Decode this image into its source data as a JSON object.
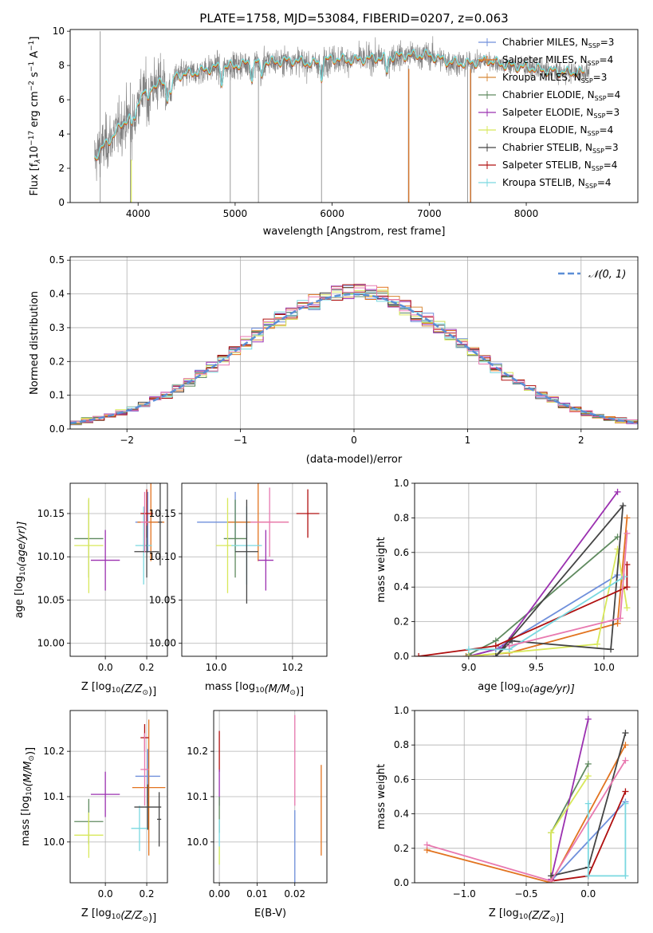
{
  "figure_title": "PLATE=1758, MJD=53084, FIBERID=0207, z=0.063",
  "colors": {
    "Chabrier MILES": "#6f8fdb",
    "Salpeter MILES": "#e2731f",
    "Kroupa MILES": "#d88a3a",
    "Chabrier ELODIE": "#5f8a5f",
    "Salpeter ELODIE": "#9b30b0",
    "Kroupa ELODIE": "#d8e85a",
    "Chabrier STELIB": "#444444",
    "Salpeter STELIB": "#b01010",
    "Kroupa STELIB": "#7ad8e0",
    "Pink": "#e879b0",
    "Gray": "#808080",
    "Normal": "#5b8ed6"
  },
  "chart_data": [
    {
      "id": "spectrum",
      "type": "line",
      "xlabel": "wavelength [Angstrom, rest frame]",
      "ylabel": "Flux [f",
      "ylabel_sub": "λ",
      "ylabel_rest": "10",
      "ylabel_exp1": "−17",
      "ylabel_rest2": " erg cm",
      "ylabel_exp2": "−2",
      "ylabel_rest3": " s",
      "ylabel_exp3": "−1",
      "ylabel_rest4": " A",
      "ylabel_exp4": "−1",
      "ylabel_close": "]",
      "xlim": [
        3300,
        9150
      ],
      "ylim": [
        0,
        10.1
      ],
      "xticks": [
        4000,
        5000,
        6000,
        7000,
        8000
      ],
      "yticks": [
        0,
        2,
        4,
        6,
        8,
        10
      ],
      "continuum": {
        "x": [
          3550,
          3600,
          3700,
          3800,
          3900,
          4000,
          4100,
          4200,
          4300,
          4400,
          4600,
          4800,
          5000,
          5200,
          5400,
          5600,
          5800,
          6000,
          6200,
          6400,
          6600,
          6800,
          7000,
          7200,
          7400,
          7600,
          7800,
          8000,
          8200,
          8400,
          8600
        ],
        "y": [
          2.6,
          3.0,
          3.6,
          4.3,
          5.0,
          6.0,
          6.7,
          6.9,
          7.0,
          7.4,
          7.6,
          7.9,
          8.0,
          8.2,
          8.2,
          8.3,
          8.1,
          8.4,
          8.3,
          8.4,
          8.5,
          8.6,
          8.6,
          8.2,
          8.1,
          8.3,
          8.0,
          7.9,
          7.7,
          7.6,
          7.6
        ]
      },
      "legend": [
        {
          "label": "Chabrier MILES, N",
          "sub": "SSP",
          "val": "=3",
          "color": "Chabrier MILES"
        },
        {
          "label": "Salpeter MILES, N",
          "sub": "SSP",
          "val": "=4",
          "color": "Salpeter MILES"
        },
        {
          "label": "Kroupa MILES, N",
          "sub": "SSP",
          "val": "=3",
          "color": "Kroupa MILES"
        },
        {
          "label": "Chabrier ELODIE, N",
          "sub": "SSP",
          "val": "=4",
          "color": "Chabrier ELODIE"
        },
        {
          "label": "Salpeter ELODIE, N",
          "sub": "SSP",
          "val": "=3",
          "color": "Salpeter ELODIE"
        },
        {
          "label": "Kroupa ELODIE, N",
          "sub": "SSP",
          "val": "=4",
          "color": "Kroupa ELODIE"
        },
        {
          "label": "Chabrier STELIB, N",
          "sub": "SSP",
          "val": "=3",
          "color": "Chabrier STELIB"
        },
        {
          "label": "Salpeter STELIB, N",
          "sub": "SSP",
          "val": "=4",
          "color": "Salpeter STELIB"
        },
        {
          "label": "Kroupa STELIB, N",
          "sub": "SSP",
          "val": "=4",
          "color": "Kroupa STELIB"
        }
      ]
    },
    {
      "id": "residuals",
      "type": "line",
      "xlabel": "(data-model)/error",
      "ylabel": "Normed distribution",
      "xlim": [
        -2.5,
        2.5
      ],
      "ylim": [
        0,
        0.51
      ],
      "xticks": [
        -2,
        -1,
        0,
        1,
        2
      ],
      "yticks": [
        0.0,
        0.1,
        0.2,
        0.3,
        0.4,
        0.5
      ],
      "bin_width": 0.1,
      "legend_label": "𝒩(0, 1)",
      "series_colors": [
        "Chabrier MILES",
        "Salpeter MILES",
        "Kroupa MILES",
        "Chabrier ELODIE",
        "Salpeter ELODIE",
        "Kroupa ELODIE",
        "Chabrier STELIB",
        "Salpeter STELIB",
        "Kroupa STELIB",
        "Pink"
      ]
    },
    {
      "id": "age_vs_Z",
      "type": "scatter",
      "xlabel": "Z [log",
      "xlabel_sub": "10",
      "xlabel_rest": "(Z/Z",
      "xlabel_sun": "⊙",
      "xlabel_close": ")]",
      "ylabel": "age  [log",
      "ylabel_sub": "10",
      "ylabel_rest": "(age/yr)]",
      "xlim": [
        -0.17,
        0.3
      ],
      "ylim": [
        9.985,
        10.185
      ],
      "xticks": [
        0.0,
        0.2
      ],
      "yticks": [
        10.0,
        10.05,
        10.1,
        10.15
      ],
      "points": [
        {
          "x": 0.205,
          "xerr": 0.06,
          "y": 10.14,
          "yerr": 0.035,
          "color": "Chabrier MILES"
        },
        {
          "x": 0.22,
          "xerr": 0.065,
          "y": 10.14,
          "yerr": 0.045,
          "color": "Salpeter MILES"
        },
        {
          "x": -0.08,
          "xerr": 0.07,
          "y": 10.121,
          "yerr": 0.045,
          "color": "Chabrier ELODIE"
        },
        {
          "x": 0.0,
          "xerr": 0.07,
          "y": 10.096,
          "yerr": 0.035,
          "color": "Salpeter ELODIE"
        },
        {
          "x": -0.08,
          "xerr": 0.07,
          "y": 10.113,
          "yerr": 0.055,
          "color": "Kroupa ELODIE"
        },
        {
          "x": 0.185,
          "xerr": 0.04,
          "y": 10.113,
          "yerr": 0.045,
          "color": "Kroupa STELIB"
        },
        {
          "x": 0.2,
          "xerr": 0.03,
          "y": 10.15,
          "yerr": 0.028,
          "color": "Salpeter STELIB"
        },
        {
          "x": 0.2,
          "xerr": 0.06,
          "y": 10.106,
          "yerr": 0.03,
          "color": "Chabrier STELIB"
        },
        {
          "x": 0.265,
          "xerr": 0.01,
          "y": 10.14,
          "yerr": 0.05,
          "color": "Chabrier STELIB"
        },
        {
          "x": 0.19,
          "xerr": 0.02,
          "y": 10.14,
          "yerr": 0.035,
          "color": "Pink"
        }
      ]
    },
    {
      "id": "age_vs_mass",
      "type": "scatter",
      "xlabel": "mass [log",
      "xlabel_sub": "10",
      "xlabel_rest": "(M/M",
      "xlabel_sun": "⊙",
      "xlabel_close": ")]",
      "xlim": [
        9.91,
        10.29
      ],
      "ylim": [
        9.985,
        10.185
      ],
      "xticks": [
        10.0,
        10.2
      ],
      "yticks": [
        10.0,
        10.05,
        10.1,
        10.15
      ],
      "points": [
        {
          "x": 10.05,
          "xerr": 0.1,
          "y": 10.14,
          "yerr": 0.035,
          "color": "Chabrier MILES"
        },
        {
          "x": 10.11,
          "xerr": 0.08,
          "y": 10.14,
          "yerr": 0.045,
          "color": "Salpeter MILES"
        },
        {
          "x": 10.05,
          "xerr": 0.03,
          "y": 10.121,
          "yerr": 0.045,
          "color": "Chabrier ELODIE"
        },
        {
          "x": 10.13,
          "xerr": 0.02,
          "y": 10.096,
          "yerr": 0.035,
          "color": "Salpeter ELODIE"
        },
        {
          "x": 10.03,
          "xerr": 0.03,
          "y": 10.113,
          "yerr": 0.055,
          "color": "Kroupa ELODIE"
        },
        {
          "x": 10.08,
          "xerr": 0.04,
          "y": 10.113,
          "yerr": 0.045,
          "color": "Kroupa STELIB"
        },
        {
          "x": 10.24,
          "xerr": 0.03,
          "y": 10.15,
          "yerr": 0.028,
          "color": "Salpeter STELIB"
        },
        {
          "x": 10.08,
          "xerr": 0.03,
          "y": 10.106,
          "yerr": 0.06,
          "color": "Chabrier STELIB"
        },
        {
          "x": 10.14,
          "xerr": 0.05,
          "y": 10.14,
          "yerr": 0.04,
          "color": "Pink"
        }
      ]
    },
    {
      "id": "weight_vs_age",
      "type": "line",
      "xlabel": "age  [log",
      "xlabel_sub": "10",
      "xlabel_rest": "(age/yr)]",
      "ylabel": "mass weight",
      "xlim": [
        8.6,
        10.25
      ],
      "ylim": [
        0,
        1.0
      ],
      "xticks": [
        9.0,
        9.5,
        10.0
      ],
      "yticks": [
        0.0,
        0.2,
        0.4,
        0.6,
        0.8,
        1.0
      ],
      "series": [
        {
          "color": "Salpeter MILES",
          "x": [
            8.98,
            9.3,
            10.1,
            10.17
          ],
          "y": [
            0.0,
            0.02,
            0.19,
            0.8
          ]
        },
        {
          "color": "Chabrier MILES",
          "x": [
            9.0,
            9.2,
            10.1
          ],
          "y": [
            0.0,
            0.04,
            0.47
          ]
        },
        {
          "color": "Chabrier ELODIE",
          "x": [
            9.0,
            9.2,
            10.1
          ],
          "y": [
            0.01,
            0.09,
            0.69
          ]
        },
        {
          "color": "Salpeter ELODIE",
          "x": [
            9.0,
            9.25,
            10.1
          ],
          "y": [
            0.0,
            0.05,
            0.95
          ]
        },
        {
          "color": "Kroupa ELODIE",
          "x": [
            9.0,
            9.95,
            10.1,
            10.17
          ],
          "y": [
            0.0,
            0.07,
            0.62,
            0.28
          ]
        },
        {
          "color": "Chabrier STELIB",
          "x": [
            9.3,
            10.05,
            10.14,
            9.2,
            9.32
          ],
          "y": [
            0.09,
            0.04,
            0.87,
            0.0,
            0.09
          ]
        },
        {
          "color": "Salpeter STELIB",
          "x": [
            8.63,
            9.2,
            10.17,
            10.17
          ],
          "y": [
            0.0,
            0.06,
            0.4,
            0.53
          ]
        },
        {
          "color": "Kroupa STELIB",
          "x": [
            9.0,
            9.3,
            10.15
          ],
          "y": [
            0.04,
            0.04,
            0.46
          ]
        },
        {
          "color": "Pink",
          "x": [
            9.3,
            10.12,
            10.17
          ],
          "y": [
            0.06,
            0.22,
            0.71
          ]
        }
      ]
    },
    {
      "id": "mass_vs_Z",
      "type": "scatter",
      "xlabel": "Z [log",
      "xlabel_sub": "10",
      "xlabel_rest": "(Z/Z",
      "xlabel_sun": "⊙",
      "xlabel_close": ")]",
      "ylabel": "mass [log",
      "ylabel_sub": "10",
      "ylabel_rest": "(M/M",
      "ylabel_sun": "⊙",
      "ylabel_close": ")]",
      "xlim": [
        -0.17,
        0.3
      ],
      "ylim": [
        9.91,
        10.29
      ],
      "xticks": [
        0.0,
        0.2
      ],
      "yticks": [
        10.0,
        10.1,
        10.2
      ],
      "points": [
        {
          "x": 0.205,
          "xerr": 0.06,
          "y": 10.145,
          "yerr": 0.06,
          "color": "Chabrier MILES"
        },
        {
          "x": 0.21,
          "xerr": 0.08,
          "y": 10.12,
          "yerr": 0.15,
          "color": "Salpeter MILES"
        },
        {
          "x": -0.08,
          "xerr": 0.07,
          "y": 10.045,
          "yerr": 0.05,
          "color": "Chabrier ELODIE"
        },
        {
          "x": 0.0,
          "xerr": 0.07,
          "y": 10.105,
          "yerr": 0.05,
          "color": "Salpeter ELODIE"
        },
        {
          "x": -0.08,
          "xerr": 0.07,
          "y": 10.015,
          "yerr": 0.05,
          "color": "Kroupa ELODIE"
        },
        {
          "x": 0.165,
          "xerr": 0.04,
          "y": 10.03,
          "yerr": 0.05,
          "color": "Kroupa STELIB"
        },
        {
          "x": 0.19,
          "xerr": 0.02,
          "y": 10.23,
          "yerr": 0.03,
          "color": "Salpeter STELIB"
        },
        {
          "x": 0.205,
          "xerr": 0.065,
          "y": 10.077,
          "yerr": 0.05,
          "color": "Chabrier STELIB"
        },
        {
          "x": 0.26,
          "xerr": 0.01,
          "y": 10.05,
          "yerr": 0.06,
          "color": "Chabrier STELIB"
        },
        {
          "x": 0.19,
          "xerr": 0.02,
          "y": 10.16,
          "yerr": 0.08,
          "color": "Pink"
        }
      ]
    },
    {
      "id": "mass_vs_ebv",
      "type": "scatter",
      "xlabel": "E(B-V)",
      "xlim": [
        -0.0015,
        0.0285
      ],
      "ylim": [
        9.91,
        10.29
      ],
      "xticks": [
        0.0,
        0.01,
        0.02
      ],
      "xticklabels": [
        "0.00",
        "0.01",
        "0.02"
      ],
      "yticks": [
        10.0,
        10.1,
        10.2
      ],
      "points": [
        {
          "x": 0.0,
          "y": 10.2,
          "yerr": 0.045,
          "color": "Salpeter STELIB"
        },
        {
          "x": 0.0,
          "y": 10.12,
          "yerr": 0.04,
          "color": "Salpeter ELODIE"
        },
        {
          "x": 0.0,
          "y": 10.06,
          "yerr": 0.04,
          "color": "Chabrier ELODIE"
        },
        {
          "x": 0.0,
          "y": 10.0,
          "yerr": 0.05,
          "color": "Kroupa STELIB"
        },
        {
          "x": 0.0,
          "y": 9.97,
          "yerr": 0.02,
          "color": "Kroupa ELODIE"
        },
        {
          "x": 0.02,
          "y": 10.18,
          "yerr": 0.1,
          "color": "Pink"
        },
        {
          "x": 0.02,
          "y": 9.98,
          "yerr": 0.09,
          "color": "Chabrier MILES"
        },
        {
          "x": 0.027,
          "y": 10.07,
          "yerr": 0.1,
          "color": "Salpeter MILES"
        }
      ]
    },
    {
      "id": "weight_vs_Z",
      "type": "line",
      "xlabel": "Z [log",
      "xlabel_sub": "10",
      "xlabel_rest": "(Z/Z",
      "xlabel_sun": "⊙",
      "xlabel_close": ")]",
      "ylabel": "mass weight",
      "xlim": [
        -1.4,
        0.4
      ],
      "ylim": [
        0,
        1.0
      ],
      "xticks": [
        -1.0,
        -0.5,
        0.0
      ],
      "xticklabels": [
        "−1.0",
        "−0.5",
        "0.0"
      ],
      "yticks": [
        0.0,
        0.2,
        0.4,
        0.6,
        0.8,
        1.0
      ],
      "series": [
        {
          "color": "Salpeter MILES",
          "x": [
            -1.3,
            -0.3,
            0.3
          ],
          "y": [
            0.19,
            0.0,
            0.8
          ]
        },
        {
          "color": "Chabrier MILES",
          "x": [
            -0.3,
            0.3
          ],
          "y": [
            0.01,
            0.47
          ]
        },
        {
          "color": "Chabrier ELODIE",
          "x": [
            -0.3,
            -0.3,
            0.0
          ],
          "y": [
            0.01,
            0.29,
            0.69
          ]
        },
        {
          "color": "Salpeter ELODIE",
          "x": [
            -0.3,
            0.0
          ],
          "y": [
            0.02,
            0.95
          ]
        },
        {
          "color": "Kroupa ELODIE",
          "x": [
            -0.3,
            -0.3,
            0.0
          ],
          "y": [
            0.0,
            0.29,
            0.62
          ]
        },
        {
          "color": "Chabrier STELIB",
          "x": [
            -0.3,
            0.0,
            0.3
          ],
          "y": [
            0.04,
            0.09,
            0.87
          ]
        },
        {
          "color": "Salpeter STELIB",
          "x": [
            -0.3,
            0.0,
            0.3
          ],
          "y": [
            0.01,
            0.04,
            0.53
          ]
        },
        {
          "color": "Kroupa STELIB",
          "x": [
            0.0,
            0.0,
            0.3,
            0.3
          ],
          "y": [
            0.46,
            0.04,
            0.04,
            0.46
          ]
        },
        {
          "color": "Pink",
          "x": [
            -1.3,
            -0.3,
            0.3
          ],
          "y": [
            0.22,
            0.01,
            0.71
          ]
        }
      ]
    }
  ]
}
